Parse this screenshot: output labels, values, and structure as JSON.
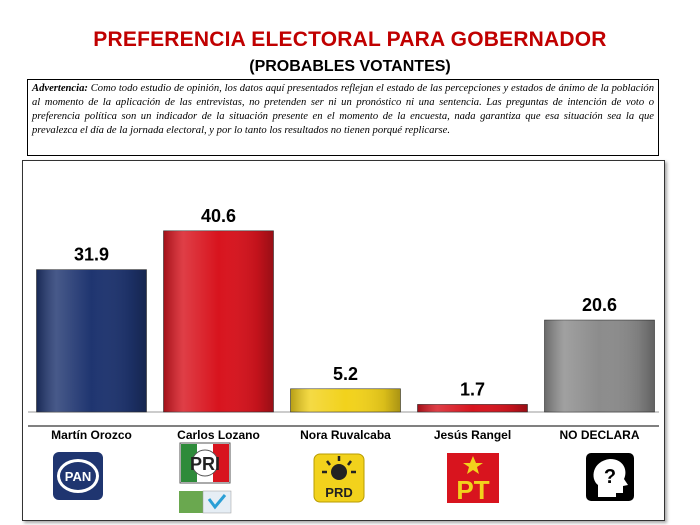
{
  "header": {
    "title": "PREFERENCIA ELECTORAL PARA GOBERNADOR",
    "subtitle": "(PROBABLES VOTANTES)"
  },
  "disclaimer": {
    "lead": "Advertencia:",
    "text": " Como todo estudio de opinión, los datos aquí presentados reflejan el estado de las percepciones y estados de ánimo de la población al momento de la aplicación de las entrevistas, no pretenden ser ni un pronóstico ni una sentencia. Las preguntas de intención de voto o preferencia política son un indicador de la situación presente en el momento de la encuesta, nada garantiza que esa situación sea la que prevalezca el día de la jornada electoral, y por lo tanto los resultados no tienen porqué replicarse."
  },
  "chart_data": {
    "type": "bar",
    "categories": [
      "Martín Orozco",
      "Carlos Lozano",
      "Nora Ruvalcaba",
      "Jesús Rangel",
      "NO DECLARA"
    ],
    "values": [
      31.9,
      40.6,
      5.2,
      1.7,
      20.6
    ],
    "value_labels": [
      "31.9",
      "40.6",
      "5.2",
      "1.7",
      "20.6"
    ],
    "colors": [
      "#1f3570",
      "#d8141e",
      "#f2d21c",
      "#d8141e",
      "#8c8c8c"
    ],
    "ylim": [
      0,
      50
    ],
    "grid": false,
    "legend": "none",
    "title": "",
    "xlabel": "",
    "ylabel": ""
  },
  "logos": [
    {
      "icon": "pan-logo-icon",
      "text": "PAN",
      "color": "#1f3570"
    },
    {
      "icon": "pri-logo-icon",
      "text": "PRI",
      "color": "#d8141e",
      "secondary_icon": "nueva-alianza-logo-icon"
    },
    {
      "icon": "prd-logo-icon",
      "text": "PRD",
      "color": "#f2d21c"
    },
    {
      "icon": "pt-logo-icon",
      "text": "PT",
      "color": "#d8141e"
    },
    {
      "icon": "unknown-head-icon",
      "text": "?",
      "color": "#000000"
    }
  ]
}
